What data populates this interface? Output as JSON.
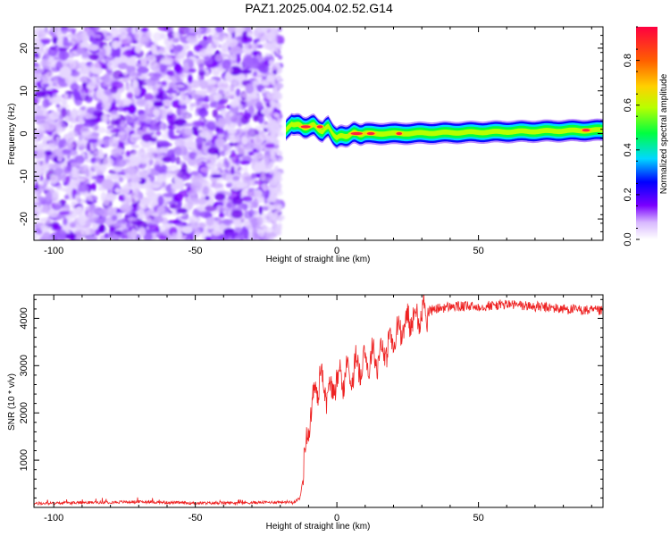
{
  "title": "PAZ1.2025.004.02.52.G14",
  "chart_data": [
    {
      "type": "heatmap",
      "xlabel": "Height of straight line (km)",
      "ylabel": "Frequency (Hz)",
      "xlim": [
        -107,
        94
      ],
      "ylim": [
        -25,
        25
      ],
      "xticks": [
        -100,
        -50,
        0,
        50
      ],
      "xtick_labels": [
        "-100",
        "-50",
        "0",
        "50"
      ],
      "yticks": [
        -20,
        -10,
        0,
        10,
        20
      ],
      "ytick_labels": [
        "-20",
        "-10",
        "0",
        "10",
        "20"
      ],
      "colorbar": {
        "label": "Normalized spectral amplitude",
        "range": [
          0,
          0.95
        ],
        "ticks": [
          0.0,
          0.2,
          0.4,
          0.6,
          0.8
        ],
        "tick_labels": [
          "0.0",
          "0.2",
          "0.4",
          "0.6",
          "0.8"
        ],
        "colormap": [
          "#ffffff",
          "#7a00ff",
          "#0000ff",
          "#00d8ff",
          "#00ff40",
          "#b8ff00",
          "#ffd000",
          "#ff6000",
          "#ff0040"
        ]
      },
      "regions": {
        "noise_end_km": -18,
        "band_start_km": -18,
        "band_center_hz": 0.5,
        "band_halfwidth_hz": 2,
        "noise_level": 0.12,
        "band_level": 0.85
      },
      "band_centerline": [
        {
          "x": -18,
          "y": 0.5
        },
        {
          "x": -16,
          "y": 2.5
        },
        {
          "x": -12,
          "y": 1.5
        },
        {
          "x": -8,
          "y": 1.8
        },
        {
          "x": -5,
          "y": 0.5
        },
        {
          "x": -3,
          "y": 1.5
        },
        {
          "x": 0,
          "y": -1
        },
        {
          "x": 3,
          "y": -0.5
        },
        {
          "x": 6,
          "y": 0
        },
        {
          "x": 20,
          "y": 0
        },
        {
          "x": 94,
          "y": 0.8
        }
      ]
    },
    {
      "type": "line",
      "xlabel": "Height of straight line (km)",
      "ylabel": "SNR (10 * v/v)",
      "xlim": [
        -107,
        94
      ],
      "ylim": [
        0,
        4500
      ],
      "xticks": [
        -100,
        -50,
        0,
        50
      ],
      "xtick_labels": [
        "-100",
        "-50",
        "0",
        "50"
      ],
      "yticks": [
        1000,
        2000,
        3000,
        4000
      ],
      "ytick_labels": [
        "1000",
        "2000",
        "3000",
        "4000"
      ],
      "color": "#ee2222",
      "series": [
        {
          "x": [
            -107,
            -90,
            -70,
            -50,
            -30,
            -15,
            -13,
            -12,
            -11,
            -10,
            -8,
            -6,
            -4,
            -2,
            0,
            3,
            6,
            10,
            14,
            18,
            22,
            26,
            30,
            35,
            40,
            50,
            60,
            70,
            80,
            94
          ],
          "y": [
            80,
            100,
            120,
            90,
            100,
            120,
            200,
            600,
            1200,
            1800,
            2300,
            2800,
            2500,
            2400,
            2700,
            2800,
            2900,
            3100,
            3200,
            3400,
            3700,
            4000,
            4100,
            4200,
            4250,
            4250,
            4300,
            4250,
            4200,
            4150
          ]
        }
      ]
    }
  ]
}
